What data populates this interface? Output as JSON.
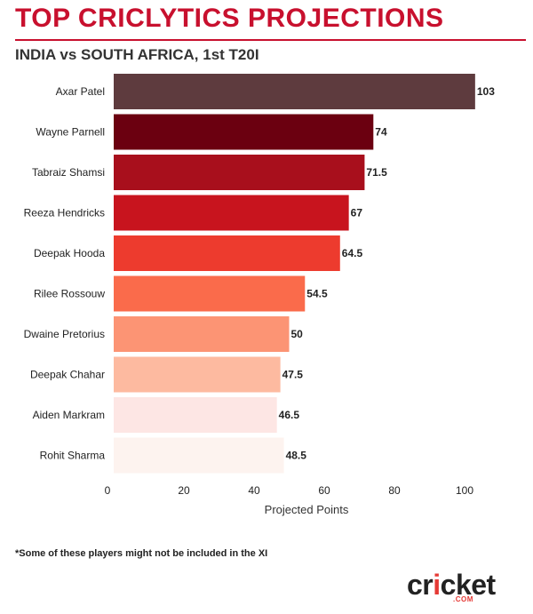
{
  "header": {
    "title": "TOP CRICLYTICS PROJECTIONS",
    "subtitle": "INDIA vs SOUTH AFRICA, 1st T20I"
  },
  "chart_data": {
    "type": "bar",
    "orientation": "horizontal",
    "categories": [
      "Axar Patel",
      "Wayne Parnell",
      "Tabraiz Shamsi",
      "Reeza Hendricks",
      "Deepak Hooda",
      "Rilee Rossouw",
      "Dwaine Pretorius",
      "Deepak Chahar",
      "Aiden Markram",
      "Rohit Sharma"
    ],
    "values": [
      103,
      74,
      71.5,
      67,
      64.5,
      54.5,
      50,
      47.5,
      46.5,
      48.5
    ],
    "value_labels": [
      "103",
      "74",
      "71.5",
      "67",
      "64.5",
      "54.5",
      "50",
      "47.5",
      "46.5",
      "48.5"
    ],
    "bar_colors": [
      "#5e3b3e",
      "#6b0010",
      "#a80f1c",
      "#c8141e",
      "#ed3b2e",
      "#fa6b4b",
      "#fc9474",
      "#fdbaa0",
      "#fde6e4",
      "#fdf3ef"
    ],
    "title": "",
    "xlabel": "Projected Points",
    "ylabel": "",
    "xlim": [
      0,
      115
    ],
    "xticks": [
      0,
      20,
      40,
      60,
      80,
      100
    ],
    "grid": false,
    "legend": "none"
  },
  "footnote": "*Some of these players might not be included in the XI",
  "logo": {
    "text_dark_1": "cr",
    "text_accent": "i",
    "text_dark_2": "cket",
    "sub": ".COM"
  }
}
